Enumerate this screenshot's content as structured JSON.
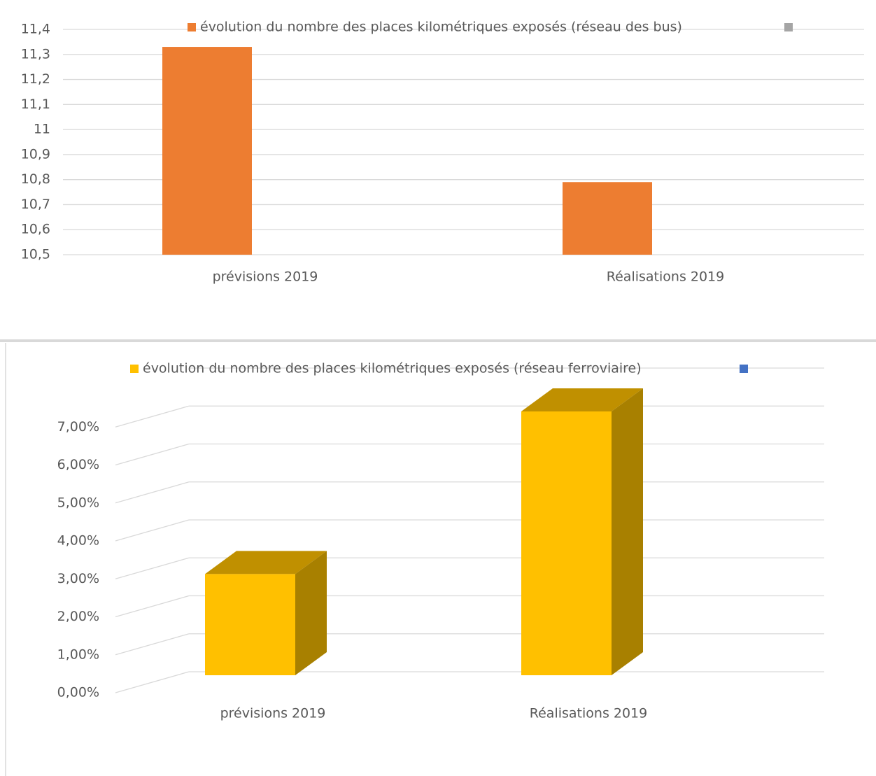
{
  "chart_data": [
    {
      "type": "bar",
      "categories": [
        "prévisions 2019",
        "Réalisations 2019"
      ],
      "series": [
        {
          "name": "évolution du nombre des places kilométriques exposés (réseau des bus)",
          "color": "#ed7d31",
          "values": [
            11.33,
            10.79
          ]
        },
        {
          "color": "#a5a5a5",
          "values": [
            null,
            null
          ]
        }
      ],
      "ylim": [
        10.5,
        11.4
      ],
      "yticks": [
        {
          "value": 10.5,
          "label": "10,5"
        },
        {
          "value": 10.6,
          "label": "10,6"
        },
        {
          "value": 10.7,
          "label": "10,7"
        },
        {
          "value": 10.8,
          "label": "10,8"
        },
        {
          "value": 10.9,
          "label": "10,9"
        },
        11,
        {
          "value": 11.1,
          "label": "11,1"
        },
        {
          "value": 11.2,
          "label": "11,2"
        },
        {
          "value": 11.3,
          "label": "11,3"
        },
        {
          "value": 11.4,
          "label": "11,4"
        }
      ],
      "grid": true
    },
    {
      "type": "bar3d",
      "categories": [
        "prévisions 2019",
        "Réalisations 2019"
      ],
      "series": [
        {
          "name": "évolution du nombre des places kilométriques exposés (réseau ferroviaire)",
          "color": "#ffc000",
          "values": [
            2.8,
            7.3
          ]
        },
        {
          "color": "#4472c4",
          "values": [
            null,
            null
          ]
        }
      ],
      "ylim": [
        0,
        8
      ],
      "yticks": [
        {
          "value": 0,
          "label": "0,00%"
        },
        {
          "value": 1,
          "label": "1,00%"
        },
        {
          "value": 2,
          "label": "2,00%"
        },
        {
          "value": 3,
          "label": "3,00%"
        },
        {
          "value": 4,
          "label": "4,00%"
        },
        {
          "value": 5,
          "label": "5,00%"
        },
        {
          "value": 6,
          "label": "6,00%"
        },
        {
          "value": 7,
          "label": "7,00%"
        }
      ],
      "grid": true
    }
  ]
}
